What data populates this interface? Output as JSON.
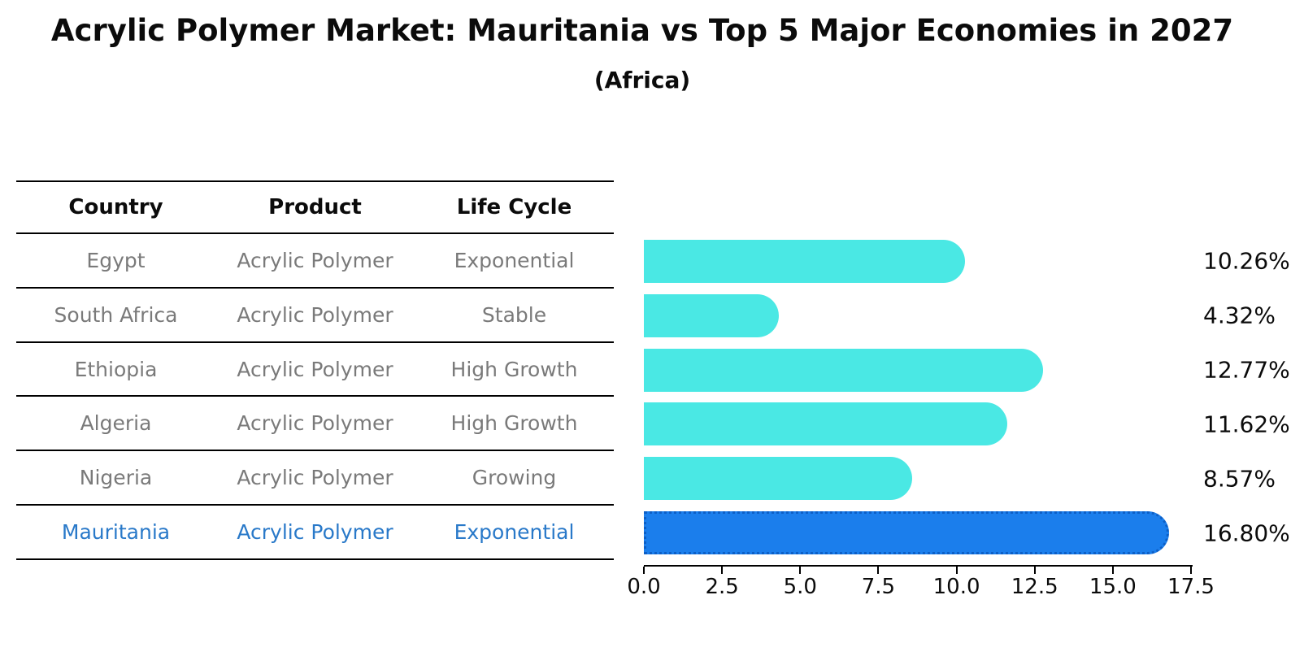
{
  "header": {
    "title": "Acrylic Polymer Market: Mauritania vs Top 5 Major Economies in 2027",
    "subtitle": "(Africa)"
  },
  "table": {
    "columns": [
      "Country",
      "Product",
      "Life Cycle"
    ],
    "rows": [
      {
        "country": "Egypt",
        "product": "Acrylic Polymer",
        "life_cycle": "Exponential",
        "highlighted": false
      },
      {
        "country": "South Africa",
        "product": "Acrylic Polymer",
        "life_cycle": "Stable",
        "highlighted": false
      },
      {
        "country": "Ethiopia",
        "product": "Acrylic Polymer",
        "life_cycle": "High Growth",
        "highlighted": false
      },
      {
        "country": "Algeria",
        "product": "Acrylic Polymer",
        "life_cycle": "High Growth",
        "highlighted": false
      },
      {
        "country": "Nigeria",
        "product": "Acrylic Polymer",
        "life_cycle": "Growing",
        "highlighted": false
      },
      {
        "country": "Mauritania",
        "product": "Acrylic Polymer",
        "life_cycle": "Exponential",
        "highlighted": true
      }
    ],
    "text_color": "#7a7a7a",
    "highlight_text_color": "#2979c9"
  },
  "chart_data": {
    "type": "bar",
    "orientation": "horizontal",
    "title": "Acrylic Polymer Market: Mauritania vs Top 5 Major Economies in 2027",
    "subtitle": "(Africa)",
    "categories": [
      "Egypt",
      "South Africa",
      "Ethiopia",
      "Algeria",
      "Nigeria",
      "Mauritania"
    ],
    "values": [
      10.26,
      4.32,
      12.77,
      11.62,
      8.57,
      16.8
    ],
    "value_labels": [
      "10.26%",
      "4.32%",
      "12.77%",
      "11.62%",
      "8.57%",
      "16.80%"
    ],
    "xlim": [
      0,
      17.5
    ],
    "xticks": [
      "0.0",
      "2.5",
      "5.0",
      "7.5",
      "10.0",
      "12.5",
      "15.0",
      "17.5"
    ],
    "grid": false,
    "legend": false,
    "bar_color": "#4ae8e4",
    "highlight_index": 5,
    "highlight_bar_color": "#1b7eec",
    "highlight_bar_border_color": "#0d5fc6"
  }
}
